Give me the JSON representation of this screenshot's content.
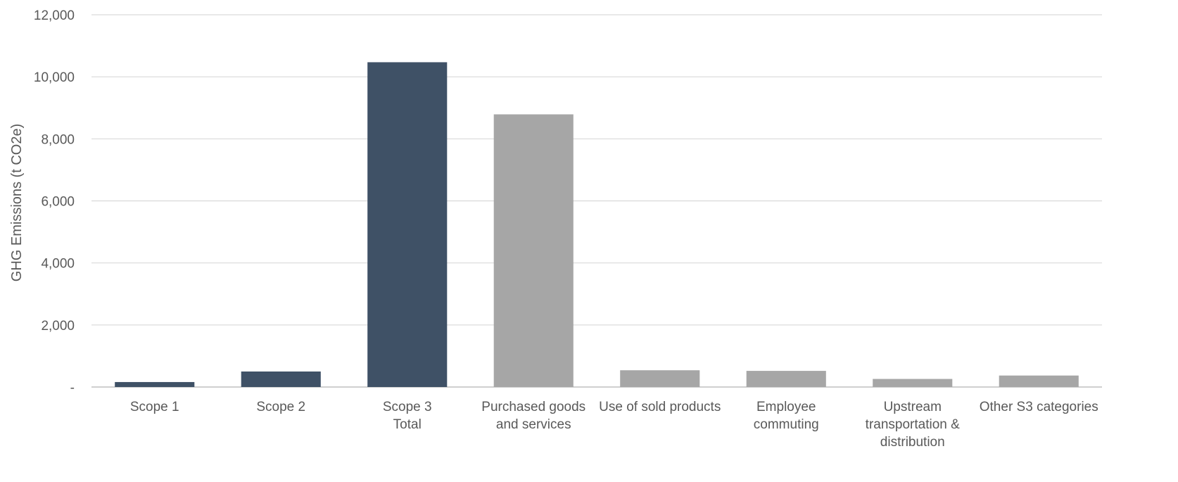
{
  "chart_data": {
    "type": "bar",
    "title": "",
    "xlabel": "",
    "ylabel": "GHG Emissions (t CO2e)",
    "ylim": [
      0,
      12000
    ],
    "yticks": [
      {
        "value": 0,
        "label": "-"
      },
      {
        "value": 2000,
        "label": "2,000"
      },
      {
        "value": 4000,
        "label": "4,000"
      },
      {
        "value": 6000,
        "label": "6,000"
      },
      {
        "value": 8000,
        "label": "8,000"
      },
      {
        "value": 10000,
        "label": "10,000"
      },
      {
        "value": 12000,
        "label": "12,000"
      }
    ],
    "categories": [
      [
        "Scope 1"
      ],
      [
        "Scope 2"
      ],
      [
        "Scope 3",
        "Total"
      ],
      [
        "Purchased goods",
        "and services"
      ],
      [
        "Use of sold products"
      ],
      [
        "Employee",
        "commuting"
      ],
      [
        "Upstream",
        "transportation &",
        "distribution"
      ],
      [
        "Other S3 categories"
      ]
    ],
    "values": [
      160,
      500,
      10470,
      8790,
      540,
      520,
      260,
      370
    ],
    "bar_colors": [
      "#3f5166",
      "#3f5166",
      "#3f5166",
      "#a6a6a6",
      "#a6a6a6",
      "#a6a6a6",
      "#a6a6a6",
      "#a6a6a6"
    ],
    "grid": true,
    "legend": "none"
  }
}
